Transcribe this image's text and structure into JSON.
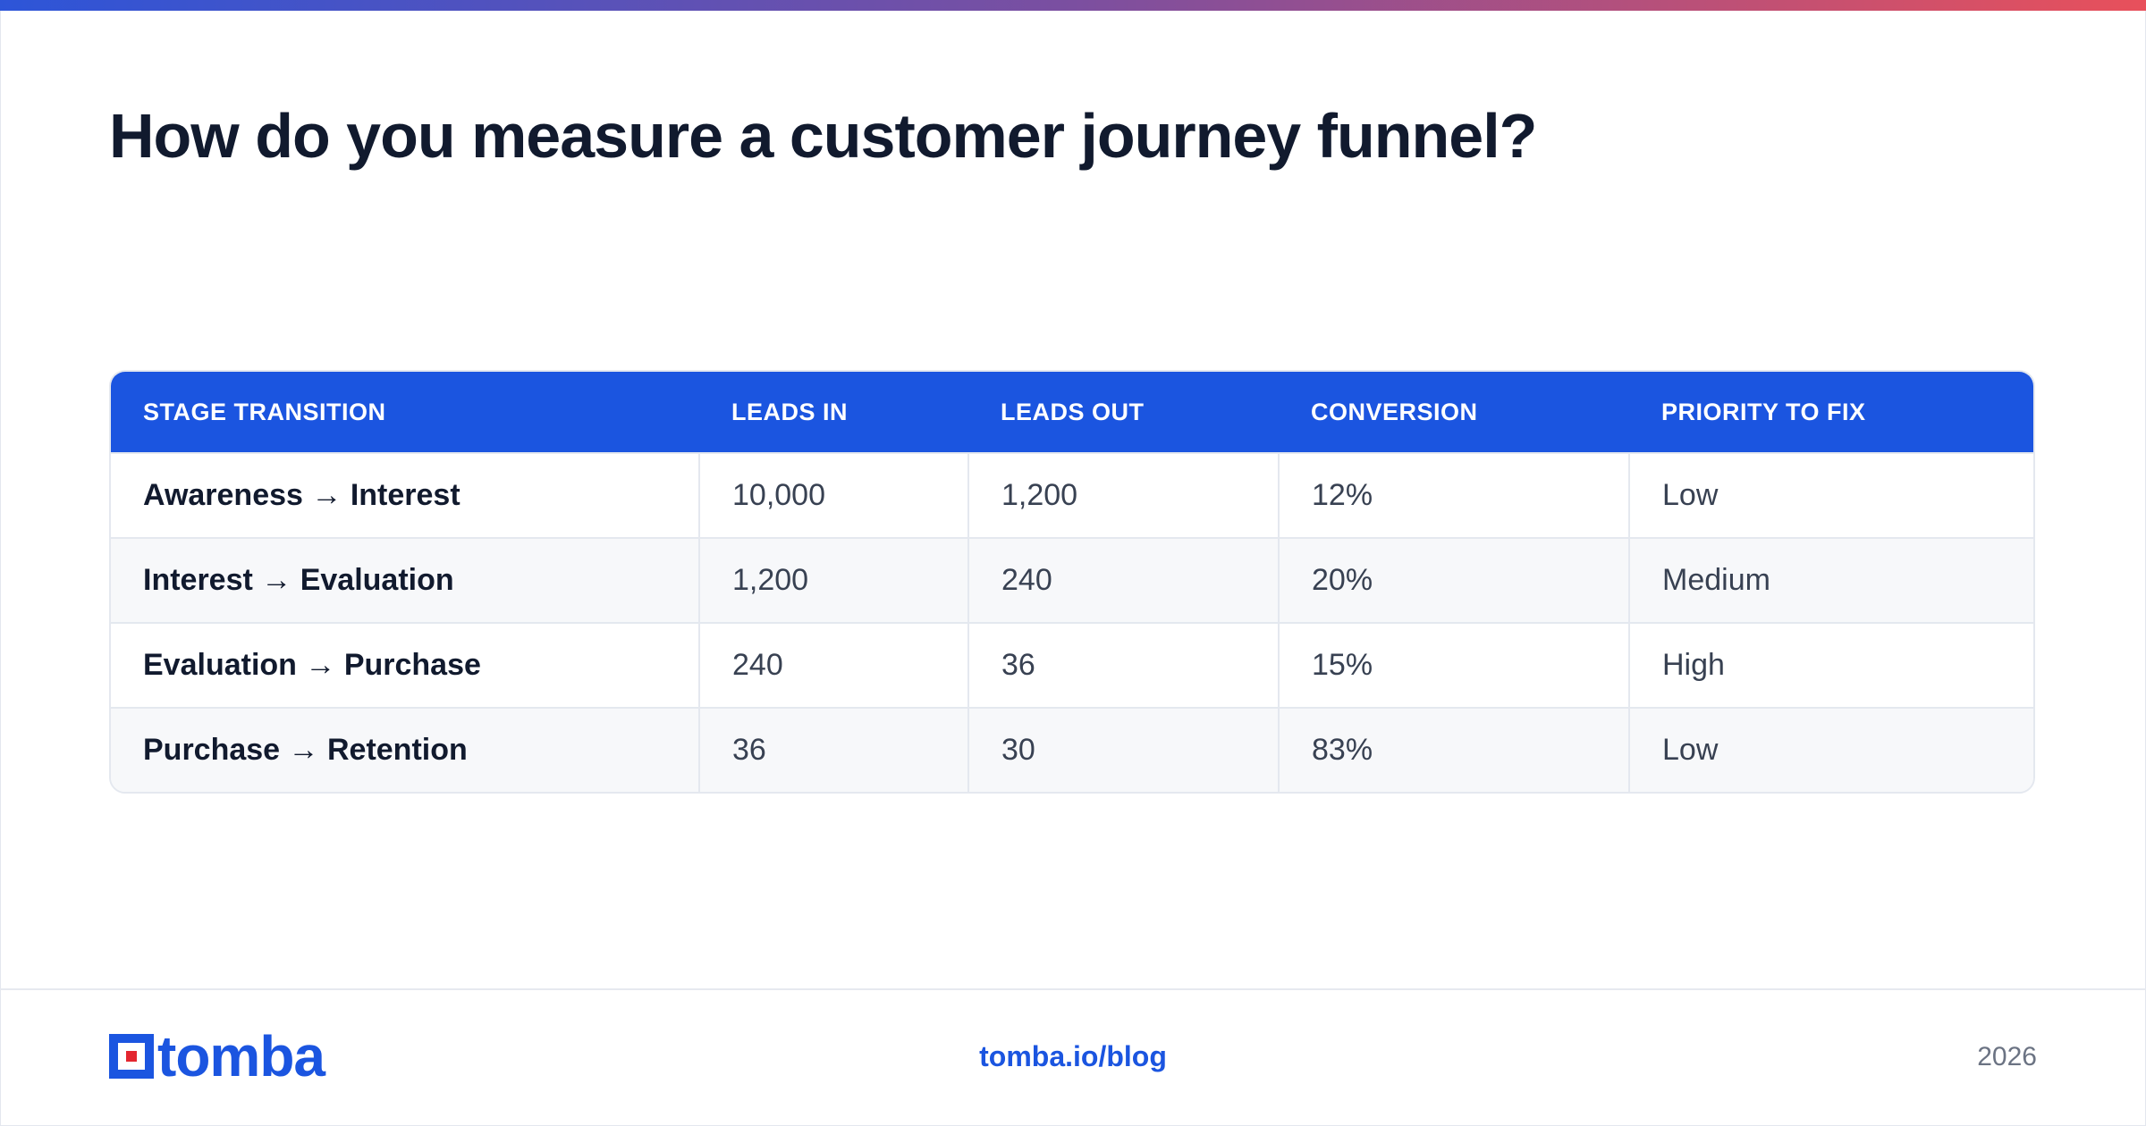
{
  "title": "How do you measure a customer journey funnel?",
  "table": {
    "headers": [
      "STAGE TRANSITION",
      "LEADS IN",
      "LEADS OUT",
      "CONVERSION",
      "PRIORITY TO FIX"
    ],
    "rows": [
      [
        "Awareness → Interest",
        "10,000",
        "1,200",
        "12%",
        "Low"
      ],
      [
        "Interest → Evaluation",
        "1,200",
        "240",
        "20%",
        "Medium"
      ],
      [
        "Evaluation → Purchase",
        "240",
        "36",
        "15%",
        "High"
      ],
      [
        "Purchase → Retention",
        "36",
        "30",
        "83%",
        "Low"
      ]
    ]
  },
  "footer": {
    "logo_text": "tomba",
    "link": "tomba.io/blog",
    "year": "2026"
  },
  "colors": {
    "accent": "#1b55e0",
    "logo_red": "#e3262f",
    "gradient_start": "#2d55d8",
    "gradient_end": "#e8505b"
  },
  "icons": {
    "logo": "tomba-logo-icon"
  }
}
